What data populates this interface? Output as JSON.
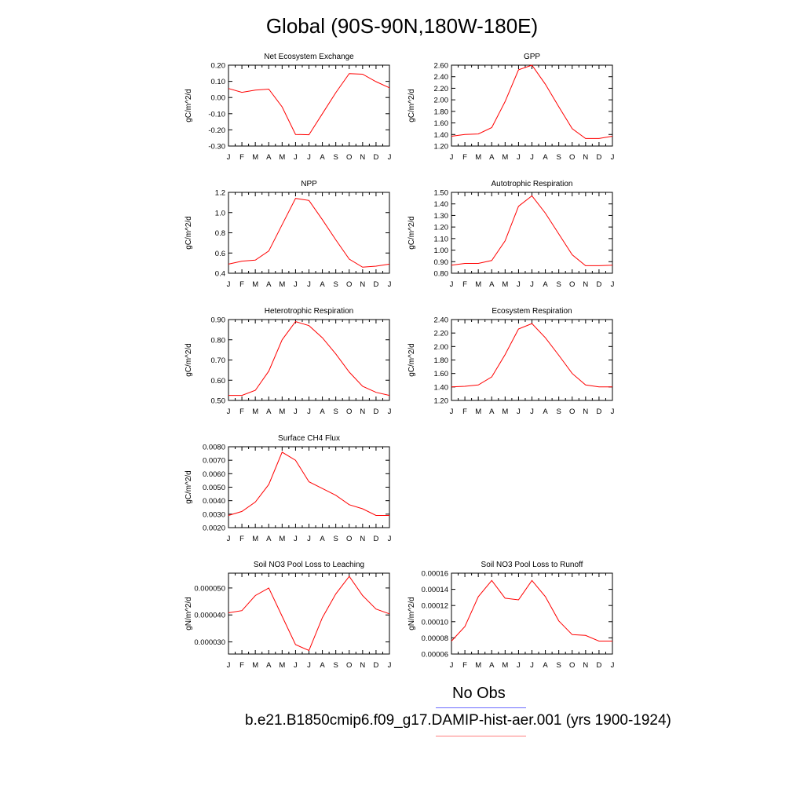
{
  "title": "Global (90S-90N,180W-180E)",
  "colors": {
    "model_line": "#ff0000",
    "obs_legend_line": "#6b6bff",
    "case_legend_line": "#ff8080"
  },
  "legend": {
    "obs_label": "No Obs",
    "case_label": "b.e21.B1850cmip6.f09_g17.DAMIP-hist-aer.001 (yrs 1900-1924)"
  },
  "chart_data": [
    {
      "type": "line",
      "title": "Net Ecosystem Exchange",
      "ylabel": "gC/m^2/d",
      "categories": [
        "J",
        "F",
        "M",
        "A",
        "M",
        "J",
        "J",
        "A",
        "S",
        "O",
        "N",
        "D",
        "J"
      ],
      "ylim": [
        -0.3,
        0.2
      ],
      "yticks": [
        "-0.30",
        "-0.20",
        "-0.10",
        "0.00",
        "0.10",
        "0.20"
      ],
      "values": [
        0.056,
        0.032,
        0.046,
        0.052,
        -0.058,
        -0.228,
        -0.23,
        -0.1,
        0.03,
        0.148,
        0.144,
        0.098,
        0.06
      ]
    },
    {
      "type": "line",
      "title": "GPP",
      "ylabel": "gC/m^2/d",
      "categories": [
        "J",
        "F",
        "M",
        "A",
        "M",
        "J",
        "J",
        "A",
        "S",
        "O",
        "N",
        "D",
        "J"
      ],
      "ylim": [
        1.2,
        2.6
      ],
      "yticks": [
        "1.20",
        "1.40",
        "1.60",
        "1.80",
        "2.00",
        "2.20",
        "2.40",
        "2.60"
      ],
      "values": [
        1.37,
        1.4,
        1.41,
        1.52,
        1.97,
        2.52,
        2.6,
        2.27,
        1.88,
        1.5,
        1.33,
        1.33,
        1.37
      ]
    },
    {
      "type": "line",
      "title": "NPP",
      "ylabel": "gC/m^2/d",
      "categories": [
        "J",
        "F",
        "M",
        "A",
        "M",
        "J",
        "J",
        "A",
        "S",
        "O",
        "N",
        "D",
        "J"
      ],
      "ylim": [
        0.4,
        1.2
      ],
      "yticks": [
        "0.4",
        "0.6",
        "0.8",
        "1.0",
        "1.2"
      ],
      "values": [
        0.49,
        0.52,
        0.53,
        0.62,
        0.88,
        1.14,
        1.12,
        0.93,
        0.73,
        0.54,
        0.46,
        0.47,
        0.49
      ]
    },
    {
      "type": "line",
      "title": "Autotrophic Respiration",
      "ylabel": "gC/m^2/d",
      "categories": [
        "J",
        "F",
        "M",
        "A",
        "M",
        "J",
        "J",
        "A",
        "S",
        "O",
        "N",
        "D",
        "J"
      ],
      "ylim": [
        0.8,
        1.5
      ],
      "yticks": [
        "0.80",
        "0.90",
        "1.00",
        "1.10",
        "1.20",
        "1.30",
        "1.40",
        "1.50"
      ],
      "values": [
        0.87,
        0.885,
        0.885,
        0.91,
        1.08,
        1.38,
        1.47,
        1.32,
        1.14,
        0.96,
        0.865,
        0.865,
        0.87
      ]
    },
    {
      "type": "line",
      "title": "Heterotrophic Respiration",
      "ylabel": "gC/m^2/d",
      "categories": [
        "J",
        "F",
        "M",
        "A",
        "M",
        "J",
        "J",
        "A",
        "S",
        "O",
        "N",
        "D",
        "J"
      ],
      "ylim": [
        0.5,
        0.9
      ],
      "yticks": [
        "0.50",
        "0.60",
        "0.70",
        "0.80",
        "0.90"
      ],
      "values": [
        0.525,
        0.525,
        0.55,
        0.645,
        0.8,
        0.89,
        0.87,
        0.81,
        0.73,
        0.64,
        0.57,
        0.54,
        0.525
      ]
    },
    {
      "type": "line",
      "title": "Ecosystem Respiration",
      "ylabel": "gC/m^2/d",
      "categories": [
        "J",
        "F",
        "M",
        "A",
        "M",
        "J",
        "J",
        "A",
        "S",
        "O",
        "N",
        "D",
        "J"
      ],
      "ylim": [
        1.2,
        2.4
      ],
      "yticks": [
        "1.20",
        "1.40",
        "1.60",
        "1.80",
        "2.00",
        "2.20",
        "2.40"
      ],
      "values": [
        1.4,
        1.41,
        1.43,
        1.55,
        1.88,
        2.26,
        2.34,
        2.13,
        1.87,
        1.6,
        1.43,
        1.4,
        1.4
      ]
    },
    {
      "type": "line",
      "title": "Surface CH4 Flux",
      "ylabel": "gC/m^2/d",
      "categories": [
        "J",
        "F",
        "M",
        "A",
        "M",
        "J",
        "J",
        "A",
        "S",
        "O",
        "N",
        "D",
        "J"
      ],
      "ylim": [
        0.002,
        0.008
      ],
      "yticks": [
        "0.0020",
        "0.0030",
        "0.0040",
        "0.0050",
        "0.0060",
        "0.0070",
        "0.0080"
      ],
      "values": [
        0.0029,
        0.0032,
        0.0039,
        0.0052,
        0.0076,
        0.007,
        0.0054,
        0.0049,
        0.0044,
        0.0037,
        0.0034,
        0.0029,
        0.0029
      ]
    },
    {
      "type": "line",
      "title": "Soil NO3 Pool Loss to Leaching",
      "ylabel": "gN/m^2/d",
      "categories": [
        "J",
        "F",
        "M",
        "A",
        "M",
        "J",
        "J",
        "A",
        "S",
        "O",
        "N",
        "D",
        "J"
      ],
      "ylim": [
        2.55e-05,
        5.55e-05
      ],
      "yticks": [
        "0.000030",
        "0.000040",
        "0.000050"
      ],
      "ytick_values": [
        3e-05,
        4e-05,
        5e-05
      ],
      "values": [
        4.08e-05,
        4.16e-05,
        4.72e-05,
        5e-05,
        3.95e-05,
        2.9e-05,
        2.68e-05,
        3.9e-05,
        4.78e-05,
        5.43e-05,
        4.72e-05,
        4.22e-05,
        4.04e-05
      ]
    },
    {
      "type": "line",
      "title": "Soil NO3 Pool Loss to Runoff",
      "ylabel": "gN/m^2/d",
      "categories": [
        "J",
        "F",
        "M",
        "A",
        "M",
        "J",
        "J",
        "A",
        "S",
        "O",
        "N",
        "D",
        "J"
      ],
      "ylim": [
        6e-05,
        0.00016
      ],
      "yticks": [
        "0.00006",
        "0.00008",
        "0.00010",
        "0.00012",
        "0.00014",
        "0.00016"
      ],
      "values": [
        7.6e-05,
        9.4e-05,
        0.000131,
        0.000151,
        0.000129,
        0.000127,
        0.000151,
        0.000131,
        0.000101,
        8.4e-05,
        8.3e-05,
        7.6e-05,
        7.6e-05
      ]
    }
  ]
}
